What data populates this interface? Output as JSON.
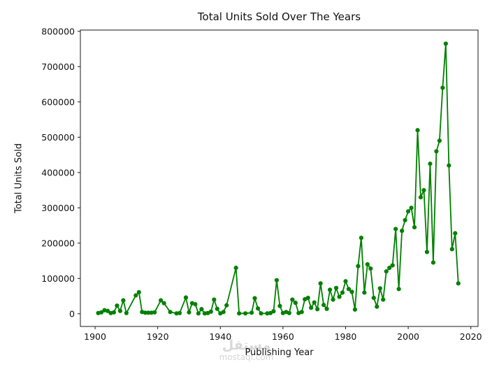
{
  "page": {
    "background": "#ffffff"
  },
  "chart_data": {
    "type": "line",
    "title": "Total Units Sold Over The Years",
    "xlabel": "Publishing Year",
    "ylabel": "Total Units Sold",
    "line_color": "#008000",
    "marker": "circle",
    "grid": false,
    "legend_position": "none",
    "xlim": [
      1895.3,
      2022.3
    ],
    "ylim": [
      -36000,
      803500
    ],
    "x_ticks": [
      1900,
      1920,
      1940,
      1960,
      1980,
      2000,
      2020
    ],
    "y_ticks": [
      0,
      100000,
      200000,
      300000,
      400000,
      500000,
      600000,
      700000,
      800000
    ],
    "series": [
      {
        "name": "Total Units Sold",
        "points": [
          [
            1901,
            2000
          ],
          [
            1902,
            4000
          ],
          [
            1903,
            10000
          ],
          [
            1904,
            8000
          ],
          [
            1905,
            2000
          ],
          [
            1906,
            4000
          ],
          [
            1907,
            23000
          ],
          [
            1908,
            8000
          ],
          [
            1909,
            38000
          ],
          [
            1910,
            2000
          ],
          [
            1913,
            52000
          ],
          [
            1914,
            61000
          ],
          [
            1915,
            5000
          ],
          [
            1916,
            3000
          ],
          [
            1917,
            3000
          ],
          [
            1918,
            3000
          ],
          [
            1919,
            4000
          ],
          [
            1921,
            38000
          ],
          [
            1922,
            30000
          ],
          [
            1924,
            5000
          ],
          [
            1926,
            1000
          ],
          [
            1927,
            2000
          ],
          [
            1929,
            46000
          ],
          [
            1930,
            4000
          ],
          [
            1931,
            30000
          ],
          [
            1932,
            27000
          ],
          [
            1933,
            1000
          ],
          [
            1934,
            13000
          ],
          [
            1935,
            1000
          ],
          [
            1936,
            2000
          ],
          [
            1937,
            6000
          ],
          [
            1938,
            40000
          ],
          [
            1939,
            14000
          ],
          [
            1940,
            1000
          ],
          [
            1941,
            5000
          ],
          [
            1942,
            24000
          ],
          [
            1945,
            130000
          ],
          [
            1946,
            1000
          ],
          [
            1948,
            1000
          ],
          [
            1950,
            3000
          ],
          [
            1951,
            44000
          ],
          [
            1952,
            15000
          ],
          [
            1953,
            1000
          ],
          [
            1955,
            1000
          ],
          [
            1956,
            2000
          ],
          [
            1957,
            7000
          ],
          [
            1958,
            95000
          ],
          [
            1959,
            22000
          ],
          [
            1960,
            2000
          ],
          [
            1961,
            5000
          ],
          [
            1962,
            2000
          ],
          [
            1963,
            40000
          ],
          [
            1964,
            31000
          ],
          [
            1965,
            2000
          ],
          [
            1966,
            5000
          ],
          [
            1967,
            41000
          ],
          [
            1968,
            45000
          ],
          [
            1969,
            17000
          ],
          [
            1970,
            32000
          ],
          [
            1971,
            13000
          ],
          [
            1972,
            86000
          ],
          [
            1973,
            25000
          ],
          [
            1974,
            14000
          ],
          [
            1975,
            68000
          ],
          [
            1976,
            40000
          ],
          [
            1977,
            73000
          ],
          [
            1978,
            48000
          ],
          [
            1979,
            60000
          ],
          [
            1980,
            92000
          ],
          [
            1981,
            70000
          ],
          [
            1982,
            62000
          ],
          [
            1983,
            12000
          ],
          [
            1984,
            135000
          ],
          [
            1985,
            215000
          ],
          [
            1986,
            60000
          ],
          [
            1987,
            140000
          ],
          [
            1988,
            128000
          ],
          [
            1989,
            45000
          ],
          [
            1990,
            20000
          ],
          [
            1991,
            72000
          ],
          [
            1992,
            40000
          ],
          [
            1993,
            120000
          ],
          [
            1994,
            130000
          ],
          [
            1995,
            137000
          ],
          [
            1996,
            240000
          ],
          [
            1997,
            70000
          ],
          [
            1998,
            235000
          ],
          [
            1999,
            265000
          ],
          [
            2000,
            290000
          ],
          [
            2001,
            300000
          ],
          [
            2002,
            245000
          ],
          [
            2003,
            520000
          ],
          [
            2004,
            330000
          ],
          [
            2005,
            350000
          ],
          [
            2006,
            175000
          ],
          [
            2007,
            425000
          ],
          [
            2008,
            145000
          ],
          [
            2009,
            460000
          ],
          [
            2010,
            490000
          ],
          [
            2011,
            640000
          ],
          [
            2012,
            765000
          ],
          [
            2013,
            420000
          ],
          [
            2014,
            183000
          ],
          [
            2015,
            228000
          ],
          [
            2016,
            86000
          ]
        ]
      }
    ]
  },
  "watermark": {
    "logo_text": "مستقل",
    "url_text": "mostaql.com"
  }
}
